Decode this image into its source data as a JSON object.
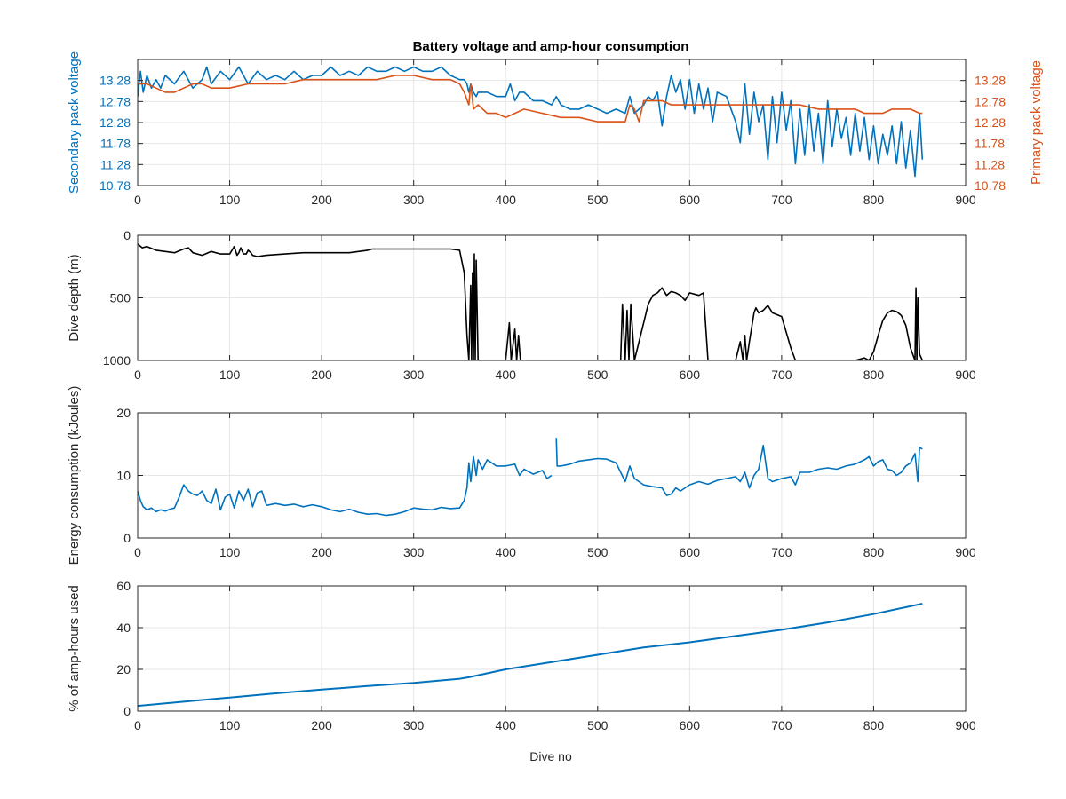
{
  "figure": {
    "title": "Battery voltage and amp-hour consumption",
    "xlabel": "Dive no"
  },
  "colors": {
    "blue": "#0072BD",
    "orange": "#D95319",
    "black": "#000000",
    "grid": "#e6e6e6",
    "axis": "#262626"
  },
  "chart_data": [
    {
      "type": "line",
      "title": "Battery voltage and amp-hour consumption",
      "xlabel": "",
      "ylabel_left": "Secondary pack voltage",
      "ylabel_right": "Primary pack voltage",
      "xlim": [
        0,
        900
      ],
      "ylim": [
        10.78,
        13.78
      ],
      "x_ticks": [
        0,
        100,
        200,
        300,
        400,
        500,
        600,
        700,
        800,
        900
      ],
      "y_ticks": [
        "10.78",
        "11.28",
        "11.78",
        "12.28",
        "12.78",
        "13.28"
      ],
      "y_ticks_right": [
        "10.78",
        "11.28",
        "11.78",
        "12.28",
        "12.78",
        "13.28"
      ],
      "grid": true,
      "series": [
        {
          "axis": "left",
          "color": "#0072BD",
          "x": [
            0,
            3,
            6,
            10,
            15,
            20,
            25,
            30,
            40,
            50,
            60,
            70,
            75,
            80,
            90,
            100,
            110,
            120,
            130,
            140,
            150,
            160,
            170,
            180,
            190,
            200,
            210,
            220,
            230,
            240,
            250,
            260,
            270,
            280,
            290,
            300,
            310,
            320,
            330,
            340,
            350,
            355,
            358,
            360,
            362,
            365,
            368,
            370,
            380,
            390,
            400,
            405,
            410,
            415,
            420,
            430,
            440,
            450,
            455,
            460,
            470,
            480,
            490,
            500,
            510,
            520,
            530,
            535,
            540,
            545,
            550,
            555,
            560,
            565,
            570,
            575,
            580,
            585,
            590,
            595,
            600,
            605,
            610,
            615,
            620,
            625,
            630,
            640,
            650,
            655,
            660,
            665,
            670,
            675,
            680,
            685,
            690,
            695,
            700,
            705,
            710,
            715,
            720,
            725,
            730,
            735,
            740,
            745,
            750,
            755,
            760,
            765,
            770,
            775,
            780,
            785,
            790,
            795,
            800,
            805,
            810,
            815,
            820,
            825,
            830,
            835,
            840,
            845,
            850,
            853
          ],
          "y": [
            12.9,
            13.5,
            13.0,
            13.4,
            13.1,
            13.3,
            13.1,
            13.4,
            13.2,
            13.5,
            13.1,
            13.3,
            13.6,
            13.2,
            13.5,
            13.3,
            13.6,
            13.2,
            13.5,
            13.3,
            13.4,
            13.3,
            13.5,
            13.3,
            13.4,
            13.4,
            13.6,
            13.4,
            13.5,
            13.4,
            13.6,
            13.5,
            13.5,
            13.6,
            13.5,
            13.6,
            13.5,
            13.5,
            13.6,
            13.4,
            13.3,
            13.3,
            13.2,
            13.0,
            13.2,
            13.0,
            12.9,
            13.0,
            13.0,
            12.9,
            12.9,
            13.2,
            12.8,
            13.0,
            13.0,
            12.8,
            12.8,
            12.7,
            12.9,
            12.7,
            12.6,
            12.6,
            12.7,
            12.6,
            12.5,
            12.6,
            12.5,
            12.9,
            12.5,
            12.6,
            12.7,
            12.9,
            12.8,
            13.0,
            12.2,
            12.9,
            13.4,
            13.0,
            13.3,
            12.6,
            13.3,
            12.5,
            13.2,
            12.6,
            13.1,
            12.3,
            13.0,
            12.9,
            12.3,
            11.8,
            13.2,
            12.0,
            13.0,
            12.3,
            12.7,
            11.4,
            12.9,
            11.8,
            13.0,
            12.1,
            12.8,
            11.3,
            12.6,
            11.5,
            12.7,
            11.6,
            12.5,
            11.3,
            12.8,
            11.7,
            12.6,
            11.9,
            12.4,
            11.5,
            12.5,
            11.6,
            12.4,
            11.4,
            12.2,
            11.3,
            12.0,
            11.5,
            12.2,
            11.3,
            12.3,
            11.2,
            12.1,
            11.0,
            12.5,
            11.4
          ]
        },
        {
          "axis": "right",
          "color": "#D95319",
          "x": [
            0,
            10,
            20,
            30,
            40,
            50,
            60,
            70,
            80,
            100,
            120,
            140,
            160,
            180,
            200,
            220,
            240,
            260,
            280,
            300,
            320,
            340,
            350,
            355,
            360,
            362,
            365,
            370,
            380,
            390,
            400,
            410,
            420,
            440,
            460,
            480,
            500,
            520,
            530,
            535,
            540,
            545,
            550,
            560,
            570,
            580,
            590,
            600,
            620,
            640,
            660,
            680,
            700,
            720,
            740,
            760,
            780,
            790,
            800,
            810,
            820,
            830,
            840,
            850,
            853
          ],
          "y": [
            13.2,
            13.2,
            13.1,
            13.0,
            13.0,
            13.1,
            13.2,
            13.2,
            13.1,
            13.1,
            13.2,
            13.2,
            13.2,
            13.3,
            13.3,
            13.3,
            13.3,
            13.3,
            13.4,
            13.4,
            13.3,
            13.3,
            13.2,
            13.0,
            12.7,
            13.2,
            12.6,
            12.7,
            12.5,
            12.5,
            12.4,
            12.5,
            12.6,
            12.5,
            12.4,
            12.4,
            12.3,
            12.3,
            12.3,
            12.7,
            12.6,
            12.3,
            12.8,
            12.8,
            12.8,
            12.7,
            12.7,
            12.7,
            12.7,
            12.7,
            12.7,
            12.7,
            12.7,
            12.7,
            12.6,
            12.6,
            12.6,
            12.5,
            12.5,
            12.5,
            12.6,
            12.6,
            12.6,
            12.5,
            12.5
          ]
        }
      ]
    },
    {
      "type": "line",
      "xlabel": "",
      "ylabel": "Dive depth (m)",
      "xlim": [
        0,
        900
      ],
      "ylim": [
        1000,
        0
      ],
      "x_ticks": [
        0,
        100,
        200,
        300,
        400,
        500,
        600,
        700,
        800,
        900
      ],
      "y_ticks": [
        "0",
        "500",
        "1000"
      ],
      "grid": true,
      "series": [
        {
          "color": "#000000",
          "x": [
            0,
            5,
            10,
            20,
            30,
            40,
            50,
            55,
            60,
            70,
            80,
            90,
            100,
            105,
            108,
            110,
            112,
            115,
            118,
            120,
            123,
            125,
            130,
            140,
            160,
            180,
            200,
            230,
            250,
            255,
            260,
            280,
            300,
            320,
            340,
            350,
            355,
            358,
            360,
            362,
            363,
            364,
            365,
            366,
            367,
            368,
            370,
            380,
            390,
            400,
            404,
            406,
            410,
            412,
            414,
            416,
            420,
            440,
            460,
            480,
            500,
            520,
            525,
            527,
            530,
            532,
            534,
            536,
            540,
            550,
            555,
            560,
            565,
            570,
            575,
            580,
            585,
            590,
            595,
            600,
            610,
            615,
            620,
            630,
            640,
            650,
            655,
            658,
            660,
            662,
            665,
            670,
            672,
            675,
            680,
            685,
            690,
            700,
            710,
            715,
            720,
            730,
            740,
            760,
            780,
            790,
            795,
            800,
            805,
            810,
            815,
            820,
            825,
            830,
            835,
            840,
            845,
            846,
            847,
            848,
            850,
            853
          ],
          "y": [
            70,
            100,
            90,
            120,
            130,
            140,
            110,
            100,
            140,
            160,
            130,
            150,
            150,
            90,
            160,
            140,
            100,
            150,
            150,
            120,
            140,
            160,
            170,
            160,
            150,
            140,
            140,
            140,
            120,
            110,
            110,
            110,
            110,
            110,
            110,
            120,
            300,
            800,
            1000,
            400,
            1000,
            300,
            1000,
            150,
            1000,
            200,
            1000,
            1000,
            1000,
            1000,
            700,
            1000,
            750,
            1000,
            800,
            1000,
            1000,
            1000,
            1000,
            1000,
            1000,
            1000,
            1000,
            550,
            1000,
            600,
            1000,
            550,
            1000,
            700,
            550,
            480,
            460,
            420,
            480,
            450,
            460,
            480,
            520,
            460,
            480,
            460,
            1000,
            1000,
            1000,
            1000,
            850,
            1000,
            800,
            1000,
            850,
            620,
            580,
            620,
            600,
            560,
            620,
            650,
            900,
            1000,
            1000,
            1000,
            1000,
            1000,
            1000,
            980,
            1000,
            930,
            800,
            680,
            620,
            600,
            610,
            640,
            720,
            900,
            1000,
            420,
            1000,
            500,
            950,
            1000
          ]
        }
      ]
    },
    {
      "type": "line",
      "xlabel": "",
      "ylabel": "Energy consumption (kJoules)",
      "xlim": [
        0,
        900
      ],
      "ylim": [
        0,
        20
      ],
      "x_ticks": [
        0,
        100,
        200,
        300,
        400,
        500,
        600,
        700,
        800,
        900
      ],
      "y_ticks": [
        "0",
        "10",
        "20"
      ],
      "grid": true,
      "series": [
        {
          "color": "#0072BD",
          "x": [
            0,
            3,
            6,
            10,
            15,
            20,
            25,
            30,
            35,
            40,
            45,
            50,
            55,
            60,
            65,
            70,
            75,
            80,
            85,
            90,
            95,
            100,
            105,
            110,
            115,
            120,
            125,
            130,
            135,
            140,
            150,
            160,
            170,
            180,
            190,
            200,
            210,
            220,
            230,
            240,
            250,
            260,
            270,
            280,
            290,
            300,
            310,
            320,
            330,
            340,
            350,
            355,
            358,
            360,
            362,
            365,
            368,
            370,
            375,
            380,
            390,
            400,
            410,
            415,
            420,
            430,
            440,
            445,
            450,
            null,
            455,
            456,
            460,
            470,
            480,
            490,
            500,
            510,
            520,
            525,
            530,
            535,
            540,
            550,
            560,
            570,
            575,
            580,
            585,
            590,
            600,
            610,
            620,
            630,
            640,
            650,
            655,
            660,
            665,
            670,
            675,
            680,
            685,
            690,
            700,
            710,
            715,
            720,
            730,
            740,
            750,
            760,
            770,
            780,
            790,
            795,
            800,
            805,
            810,
            815,
            820,
            825,
            830,
            835,
            840,
            845,
            848,
            850,
            853
          ],
          "y": [
            7.5,
            6.0,
            5.0,
            4.5,
            4.8,
            4.2,
            4.5,
            4.3,
            4.6,
            4.8,
            6.5,
            8.5,
            7.5,
            7.0,
            6.8,
            7.5,
            6.0,
            5.5,
            7.8,
            4.5,
            6.5,
            7.0,
            4.8,
            7.5,
            6.0,
            7.8,
            5.0,
            7.2,
            7.5,
            5.2,
            5.5,
            5.2,
            5.4,
            5.0,
            5.3,
            5.0,
            4.5,
            4.2,
            4.6,
            4.1,
            3.8,
            3.9,
            3.6,
            3.8,
            4.2,
            4.8,
            4.6,
            4.5,
            4.9,
            4.7,
            4.8,
            6.0,
            8.0,
            12.0,
            9.0,
            13.0,
            10.0,
            12.5,
            11.0,
            12.5,
            11.5,
            11.5,
            11.8,
            10.0,
            11.0,
            10.2,
            10.8,
            9.5,
            10.0,
            null,
            16.0,
            11.5,
            11.5,
            11.8,
            12.3,
            12.5,
            12.7,
            12.6,
            12.0,
            10.5,
            9.0,
            11.5,
            9.5,
            8.5,
            8.2,
            8.0,
            6.8,
            7.0,
            8.0,
            7.5,
            8.5,
            9.0,
            8.6,
            9.2,
            9.5,
            9.8,
            9.0,
            10.5,
            8.0,
            10.0,
            11.0,
            14.8,
            9.5,
            9.0,
            9.5,
            9.8,
            8.5,
            10.5,
            10.5,
            11.0,
            11.2,
            11.0,
            11.5,
            11.8,
            12.5,
            13.0,
            11.5,
            12.2,
            12.5,
            11.0,
            10.8,
            10.0,
            10.5,
            11.5,
            12.0,
            13.5,
            9.0,
            14.5,
            14.2
          ]
        }
      ]
    },
    {
      "type": "line",
      "xlabel": "Dive no",
      "ylabel": "% of amp-hours used",
      "xlim": [
        0,
        900
      ],
      "ylim": [
        0,
        60
      ],
      "x_ticks": [
        0,
        100,
        200,
        300,
        400,
        500,
        600,
        700,
        800,
        900
      ],
      "y_ticks": [
        "0",
        "20",
        "40",
        "60"
      ],
      "grid": true,
      "series": [
        {
          "color": "#0072BD",
          "x": [
            0,
            50,
            100,
            150,
            200,
            250,
            300,
            350,
            360,
            400,
            450,
            500,
            550,
            600,
            650,
            700,
            750,
            800,
            853
          ],
          "y": [
            2.5,
            4.5,
            6.5,
            8.5,
            10.3,
            12.0,
            13.5,
            15.5,
            16.2,
            20.0,
            23.5,
            27.0,
            30.5,
            33.0,
            36.0,
            39.0,
            42.5,
            46.5,
            51.5
          ]
        }
      ]
    }
  ]
}
